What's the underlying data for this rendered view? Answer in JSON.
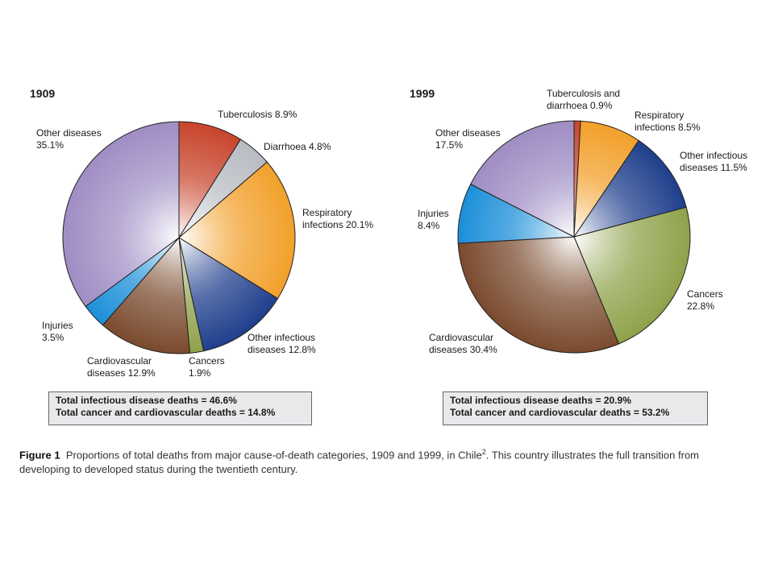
{
  "chart_data": [
    {
      "type": "pie",
      "title": "1909",
      "slices": [
        {
          "label": "Tuberculosis 8.9%",
          "value": 8.9,
          "color": "#c8442c"
        },
        {
          "label": "Diarrhoea 4.8%",
          "value": 4.8,
          "color": "#b8bcc2"
        },
        {
          "label": "Respiratory\ninfections 20.1%",
          "value": 20.1,
          "color": "#f2a02a"
        },
        {
          "label": "Other infectious\ndiseases 12.8%",
          "value": 12.8,
          "color": "#1f3f8c"
        },
        {
          "label": "Cancers\n1.9%",
          "value": 1.9,
          "color": "#8fa24a"
        },
        {
          "label": "Cardiovascular\ndiseases 12.9%",
          "value": 12.9,
          "color": "#7a4a2e"
        },
        {
          "label": "Injuries\n3.5%",
          "value": 3.5,
          "color": "#1c8fd8"
        },
        {
          "label": "Other diseases\n35.1%",
          "value": 35.1,
          "color": "#9f8dc4"
        }
      ],
      "totals": [
        "Total infectious disease deaths = 46.6%",
        "Total cancer and cardiovascular deaths = 14.8%"
      ]
    },
    {
      "type": "pie",
      "title": "1999",
      "slices": [
        {
          "label": "Tuberculosis and\ndiarrhoea 0.9%",
          "value": 0.9,
          "color": "#c8442c"
        },
        {
          "label": "Respiratory\ninfections 8.5%",
          "value": 8.5,
          "color": "#f2a02a"
        },
        {
          "label": "Other infectious\ndiseases 11.5%",
          "value": 11.5,
          "color": "#1f3f8c"
        },
        {
          "label": "Cancers\n22.8%",
          "value": 22.8,
          "color": "#8fa24a"
        },
        {
          "label": "Cardiovascular\ndiseases 30.4%",
          "value": 30.4,
          "color": "#7a4a2e"
        },
        {
          "label": "Injuries\n8.4%",
          "value": 8.4,
          "color": "#1c8fd8"
        },
        {
          "label": "Other diseases\n17.5%",
          "value": 17.5,
          "color": "#9f8dc4"
        }
      ],
      "totals": [
        "Total infectious disease deaths = 20.9%",
        "Total cancer and cardiovascular deaths = 53.2%"
      ]
    }
  ],
  "caption": {
    "figure_label": "Figure 1",
    "text_before_sup": "Proportions of total deaths from major cause-of-death categories, 1909 and 1999, in Chile",
    "sup": "2",
    "text_after_sup": ". This country illustrates the full transition from developing to developed status during the twentieth century."
  }
}
